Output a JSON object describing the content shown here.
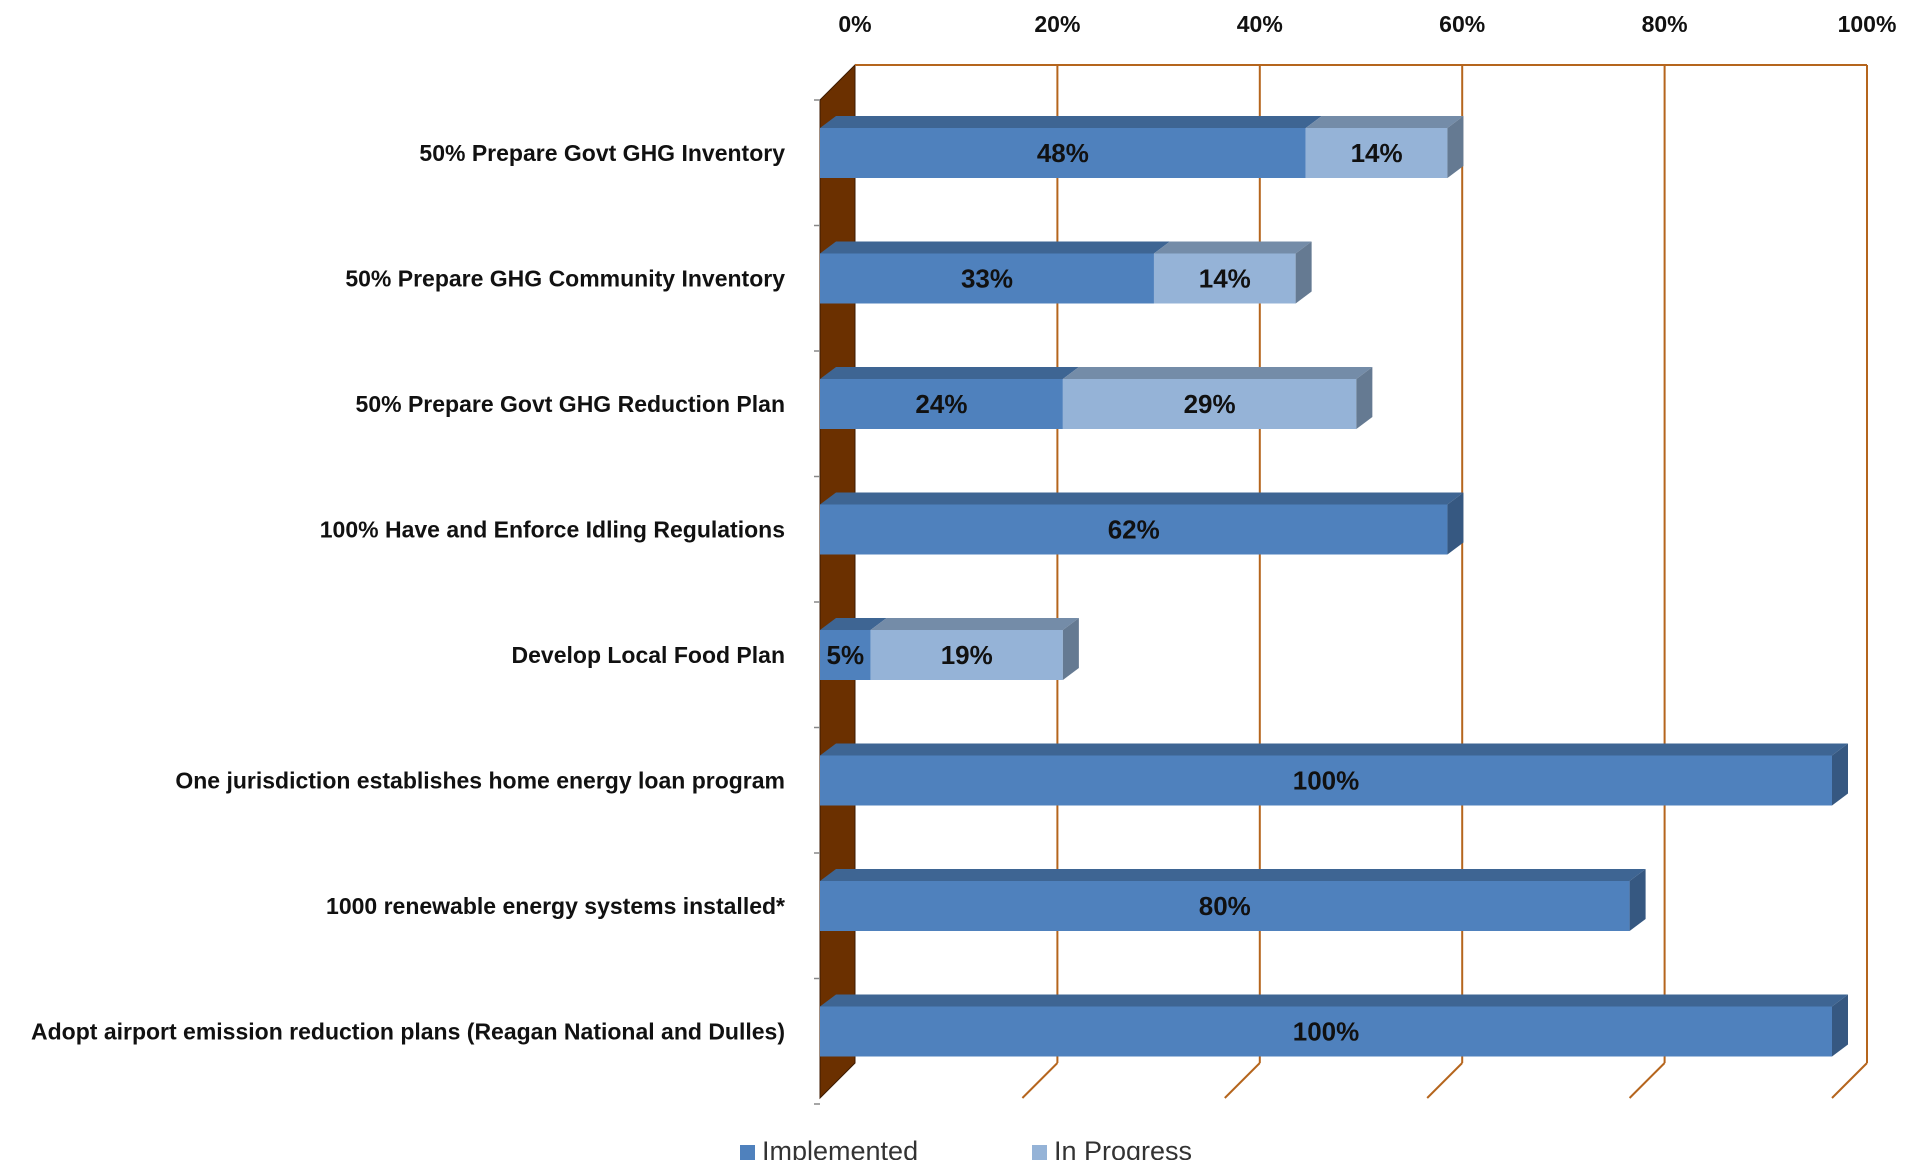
{
  "chart_data": {
    "type": "bar",
    "orientation": "horizontal",
    "stacked": true,
    "style": "3d",
    "categories": [
      "50% Prepare Govt GHG Inventory",
      "50% Prepare GHG Community Inventory",
      "50% Prepare Govt GHG Reduction Plan",
      "100% Have and Enforce Idling Regulations",
      "Develop Local Food Plan",
      "One jurisdiction establishes home energy loan program",
      "1000 renewable energy systems installed*",
      "Adopt airport emission reduction plans (Reagan National and Dulles)"
    ],
    "series": [
      {
        "name": "Implemented",
        "values": [
          48,
          33,
          24,
          62,
          5,
          100,
          80,
          100
        ]
      },
      {
        "name": "In Progress",
        "values": [
          14,
          14,
          29,
          0,
          19,
          0,
          0,
          0
        ]
      }
    ],
    "data_labels": {
      "Implemented": [
        "48%",
        "33%",
        "24%",
        "62%",
        "5%",
        "100%",
        "80%",
        "100%"
      ],
      "In Progress": [
        "14%",
        "14%",
        "29%",
        "",
        "19%",
        "",
        "",
        ""
      ]
    },
    "x_ticks": [
      "0%",
      "20%",
      "40%",
      "60%",
      "80%",
      "100%"
    ],
    "xlim": [
      0,
      100
    ],
    "x_axis_position": "top",
    "grid": true,
    "legend_position": "bottom",
    "colors": {
      "Implemented": "#4F81BD",
      "In Progress": "#95B3D7",
      "gridline": "#B5651D",
      "wall": "#6B3000"
    }
  }
}
